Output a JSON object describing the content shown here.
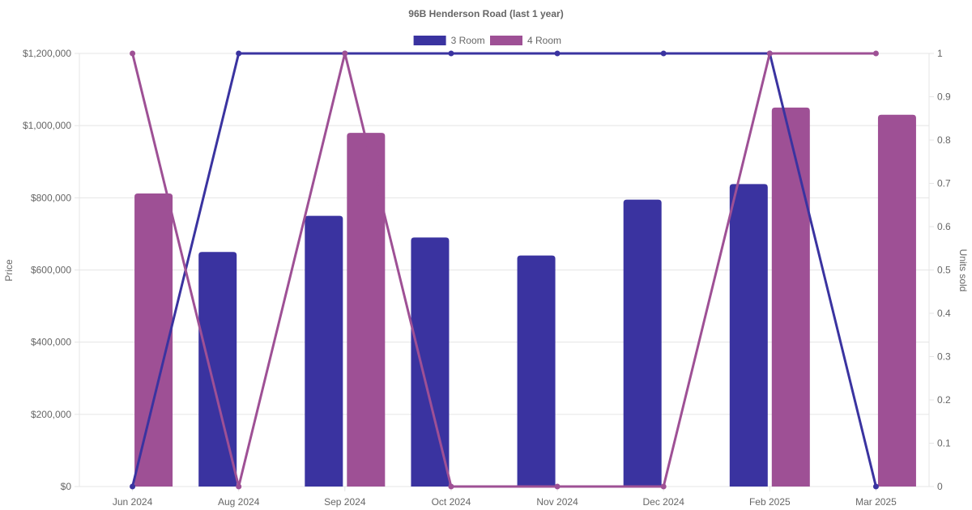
{
  "chart_data": {
    "type": "bar",
    "title": "96B Henderson Road (last 1 year)",
    "categories": [
      "Jun 2024",
      "Aug 2024",
      "Sep 2024",
      "Oct 2024",
      "Nov 2024",
      "Dec 2024",
      "Feb 2025",
      "Mar 2025"
    ],
    "ylabel": "Price",
    "y2label": "Units sold",
    "ylim": [
      0,
      1200000
    ],
    "y2lim": [
      0,
      1
    ],
    "yticks": [
      "$0",
      "$200,000",
      "$400,000",
      "$600,000",
      "$800,000",
      "$1,000,000",
      "$1,200,000"
    ],
    "y2ticks": [
      "0",
      "0.1",
      "0.2",
      "0.3",
      "0.4",
      "0.5",
      "0.6",
      "0.7",
      "0.8",
      "0.9",
      "1"
    ],
    "grid": true,
    "legend_position": "top",
    "series": [
      {
        "name": "3 Room",
        "color": "#3a33a0",
        "price_values": [
          null,
          650000,
          750000,
          690000,
          640000,
          795000,
          838000,
          null
        ],
        "units_values": [
          0,
          1,
          1,
          1,
          1,
          1,
          1,
          0
        ]
      },
      {
        "name": "4 Room",
        "color": "#9e5095",
        "price_values": [
          812000,
          null,
          980000,
          null,
          null,
          null,
          1050000,
          1030000
        ],
        "units_values": [
          1,
          0,
          1,
          0,
          0,
          0,
          1,
          1
        ]
      }
    ]
  }
}
